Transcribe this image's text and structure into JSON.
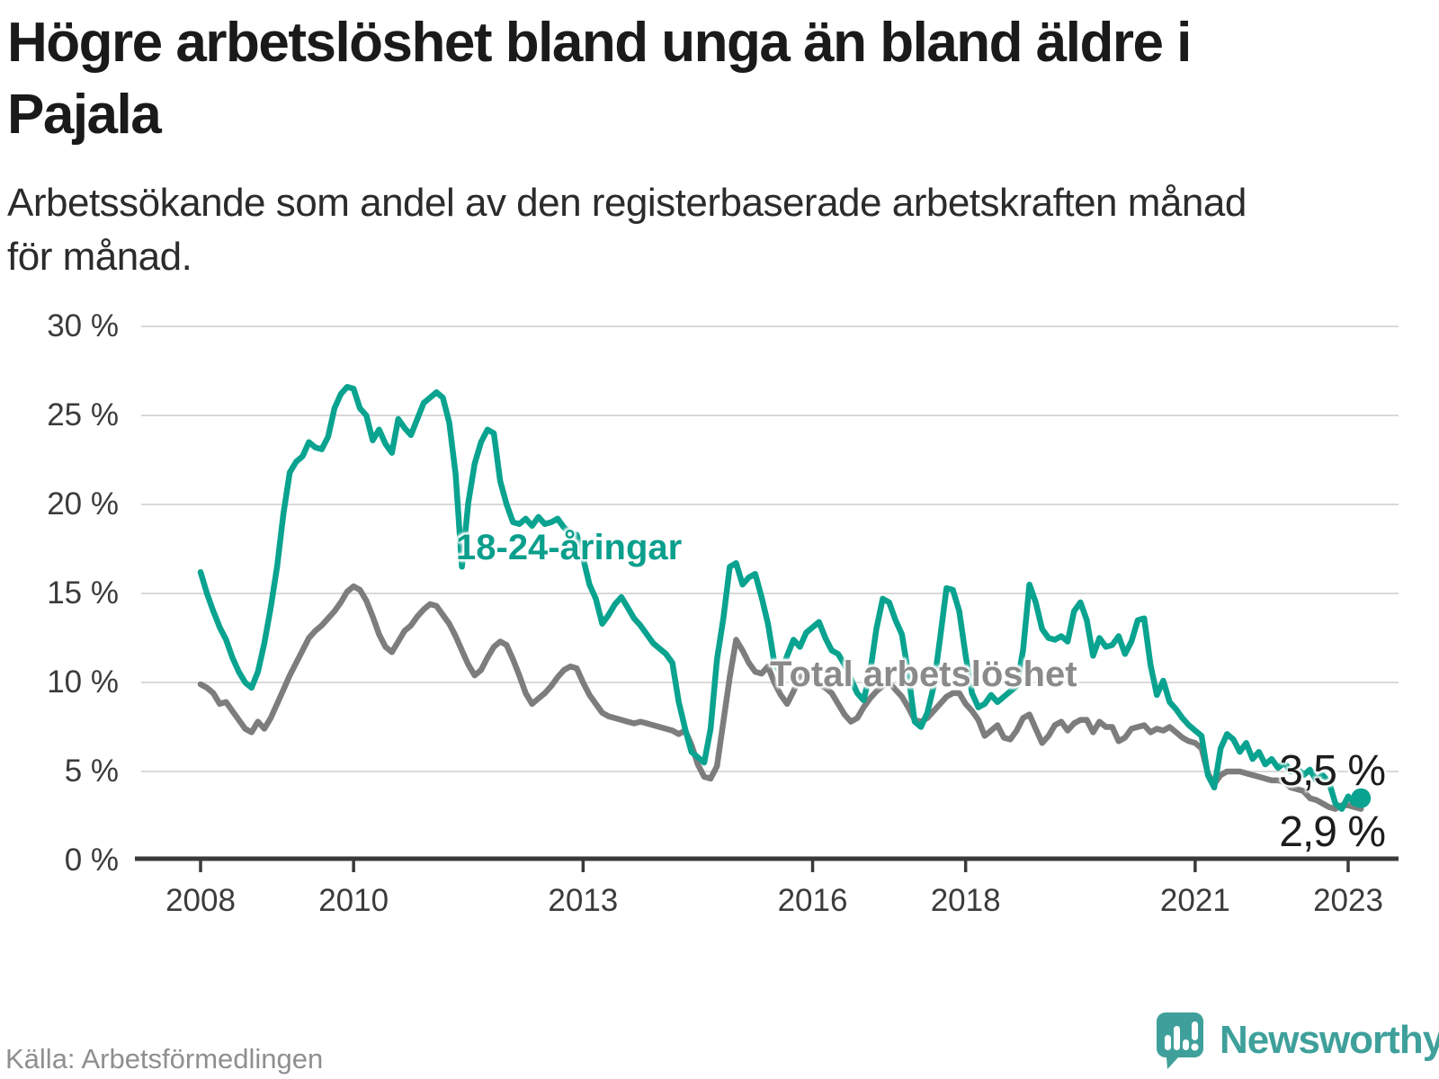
{
  "header": {
    "title_lines": [
      "Högre arbetslöshet bland unga än bland äldre i",
      "Pajala"
    ],
    "subtitle_lines": [
      "Arbetssökande som andel av den registerbaserade arbetskraften månad",
      "för månad."
    ]
  },
  "chart": {
    "series_labels": {
      "young": "18-24-åringar",
      "total": "Total arbetslöshet"
    },
    "end_labels": {
      "young": "3,5 %",
      "total": "2,9 %"
    },
    "colors": {
      "young_line": "#09a390",
      "young_label": "#0a9f8c",
      "total_line": "#7d7d7d",
      "total_label": "#8a8a8a",
      "grid": "#d9d9d9",
      "axis": "#3a3a3a",
      "tick_text": "#3b3b3b",
      "end_label_text": "#1c1c1c",
      "brand_teal": "#3fa09b"
    }
  },
  "chart_data": {
    "type": "line",
    "title": "Högre arbetslöshet bland unga än bland äldre i Pajala",
    "subtitle": "Arbetssökande som andel av den registerbaserade arbetskraften månad för månad.",
    "unit": "%",
    "frequency": "monthly",
    "x_start": "2008-01",
    "x_end": "2023-03",
    "ylim": [
      0,
      30
    ],
    "grid": "horizontal",
    "legend_position": "inline-labels",
    "y_ticks": [
      {
        "value": 0,
        "label": "0 %"
      },
      {
        "value": 5,
        "label": "5 %"
      },
      {
        "value": 10,
        "label": "10 %"
      },
      {
        "value": 15,
        "label": "15 %"
      },
      {
        "value": 20,
        "label": "20 %"
      },
      {
        "value": 25,
        "label": "25 %"
      },
      {
        "value": 30,
        "label": "30 %"
      }
    ],
    "x_ticks": [
      {
        "year": 2008,
        "label": "2008"
      },
      {
        "year": 2010,
        "label": "2010"
      },
      {
        "year": 2013,
        "label": "2013"
      },
      {
        "year": 2016,
        "label": "2016"
      },
      {
        "year": 2018,
        "label": "2018"
      },
      {
        "year": 2021,
        "label": "2021"
      },
      {
        "year": 2023,
        "label": "2023"
      }
    ],
    "series": [
      {
        "name": "18-24-åringar",
        "end_value_label": "3,5 %",
        "values": [
          16.2,
          15.0,
          14.0,
          13.1,
          12.4,
          11.4,
          10.6,
          10.0,
          9.7,
          10.6,
          12.2,
          14.2,
          16.5,
          19.5,
          21.8,
          22.4,
          22.7,
          23.5,
          23.2,
          23.1,
          23.8,
          25.4,
          26.2,
          26.6,
          26.5,
          25.4,
          25.0,
          23.6,
          24.2,
          23.4,
          22.9,
          24.8,
          24.3,
          23.9,
          24.8,
          25.7,
          26.0,
          26.3,
          26.0,
          24.6,
          21.7,
          16.5,
          20.1,
          22.3,
          23.5,
          24.2,
          24.0,
          21.3,
          20.0,
          19.0,
          18.9,
          19.2,
          18.8,
          19.3,
          18.9,
          19.0,
          19.2,
          18.7,
          18.4,
          18.3,
          17.0,
          15.5,
          14.7,
          13.3,
          13.8,
          14.4,
          14.8,
          14.2,
          13.6,
          13.2,
          12.7,
          12.2,
          11.9,
          11.6,
          11.1,
          8.9,
          7.4,
          6.1,
          5.8,
          5.5,
          7.4,
          11.3,
          13.6,
          16.5,
          16.7,
          15.5,
          15.9,
          16.1,
          14.8,
          13.3,
          11.1,
          10.5,
          11.5,
          12.4,
          12.0,
          12.8,
          13.1,
          13.4,
          12.5,
          11.8,
          11.6,
          11.0,
          10.2,
          9.4,
          9.0,
          10.5,
          13.0,
          14.7,
          14.5,
          13.5,
          12.7,
          10.5,
          7.8,
          7.5,
          8.3,
          9.8,
          12.5,
          15.3,
          15.2,
          14.0,
          11.5,
          9.4,
          8.6,
          8.8,
          9.3,
          8.9,
          9.2,
          9.5,
          9.8,
          11.8,
          15.5,
          14.5,
          13.0,
          12.5,
          12.4,
          12.6,
          12.3,
          14.0,
          14.5,
          13.5,
          11.5,
          12.5,
          12.0,
          12.1,
          12.6,
          11.6,
          12.3,
          13.5,
          13.6,
          11.0,
          9.3,
          10.1,
          8.9,
          8.5,
          8.0,
          7.6,
          7.3,
          7.0,
          4.8,
          4.1,
          6.3,
          7.1,
          6.8,
          6.1,
          6.6,
          5.7,
          6.1,
          5.4,
          5.7,
          5.2,
          5.5,
          5.0,
          5.2,
          4.8,
          5.1,
          4.5,
          4.8,
          4.4,
          3.2,
          2.9,
          3.6,
          3.2,
          3.5
        ]
      },
      {
        "name": "Total arbetslöshet",
        "end_value_label": "2,9 %",
        "values": [
          9.9,
          9.7,
          9.4,
          8.8,
          8.9,
          8.4,
          7.9,
          7.4,
          7.2,
          7.8,
          7.4,
          8.0,
          8.8,
          9.6,
          10.4,
          11.1,
          11.8,
          12.5,
          12.9,
          13.2,
          13.6,
          14.0,
          14.5,
          15.1,
          15.4,
          15.2,
          14.6,
          13.7,
          12.7,
          12.0,
          11.7,
          12.3,
          12.9,
          13.2,
          13.7,
          14.1,
          14.4,
          14.3,
          13.8,
          13.3,
          12.6,
          11.8,
          11.0,
          10.4,
          10.7,
          11.4,
          12.0,
          12.3,
          12.1,
          11.3,
          10.4,
          9.4,
          8.8,
          9.1,
          9.4,
          9.8,
          10.3,
          10.7,
          10.9,
          10.8,
          10.0,
          9.3,
          8.8,
          8.3,
          8.1,
          8.0,
          7.9,
          7.8,
          7.7,
          7.8,
          7.7,
          7.6,
          7.5,
          7.4,
          7.3,
          7.1,
          7.3,
          6.5,
          5.4,
          4.7,
          4.6,
          5.3,
          7.8,
          10.3,
          12.4,
          11.8,
          11.1,
          10.6,
          10.5,
          10.9,
          10.0,
          9.3,
          8.8,
          9.5,
          10.3,
          10.6,
          10.4,
          9.9,
          9.7,
          9.4,
          8.8,
          8.2,
          7.8,
          8.0,
          8.6,
          9.1,
          9.5,
          9.8,
          10.0,
          9.6,
          9.2,
          8.6,
          7.9,
          7.8,
          8.0,
          8.4,
          8.8,
          9.2,
          9.4,
          9.4,
          8.8,
          8.4,
          7.9,
          7.0,
          7.3,
          7.6,
          6.9,
          6.8,
          7.3,
          8.0,
          8.2,
          7.4,
          6.6,
          7.0,
          7.6,
          7.8,
          7.3,
          7.7,
          7.9,
          7.9,
          7.2,
          7.8,
          7.5,
          7.5,
          6.7,
          6.9,
          7.4,
          7.5,
          7.6,
          7.2,
          7.4,
          7.3,
          7.5,
          7.2,
          6.9,
          6.7,
          6.6,
          6.3,
          4.9,
          4.3,
          4.8,
          5.0,
          5.0,
          5.0,
          4.9,
          4.8,
          4.7,
          4.6,
          4.5,
          4.5,
          4.4,
          4.1,
          4.0,
          3.9,
          3.5,
          3.4,
          3.2,
          3.0,
          2.9,
          3.1,
          3.1,
          3.0,
          2.9
        ]
      }
    ]
  },
  "footer": {
    "source": "Källa: Arbetsförmedlingen",
    "brand": "Newsworthy"
  }
}
